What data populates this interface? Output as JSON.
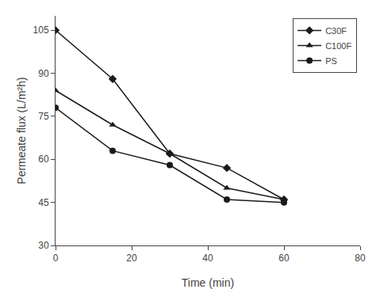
{
  "chart_data": {
    "type": "line",
    "xlabel": "Time (min)",
    "ylabel": "Permeate flux (L/m²h)",
    "x": [
      0,
      15,
      30,
      45,
      60
    ],
    "series": [
      {
        "name": "C30F",
        "color": "#1a1a1a",
        "marker": "diamond",
        "values": [
          105,
          88,
          62,
          57,
          46
        ]
      },
      {
        "name": "C100F",
        "color": "#1a1a1a",
        "marker": "triangle-up",
        "values": [
          84,
          72,
          62,
          50,
          46
        ]
      },
      {
        "name": "PS",
        "color": "#1a1a1a",
        "marker": "circle",
        "values": [
          78,
          63,
          58,
          46,
          45
        ]
      }
    ],
    "xlim": [
      0,
      80
    ],
    "ylim": [
      30,
      110
    ],
    "xticks": [
      0,
      20,
      40,
      60,
      80
    ],
    "yticks": [
      30,
      45,
      60,
      75,
      90,
      105
    ],
    "grid": false,
    "legend": "upper right"
  }
}
